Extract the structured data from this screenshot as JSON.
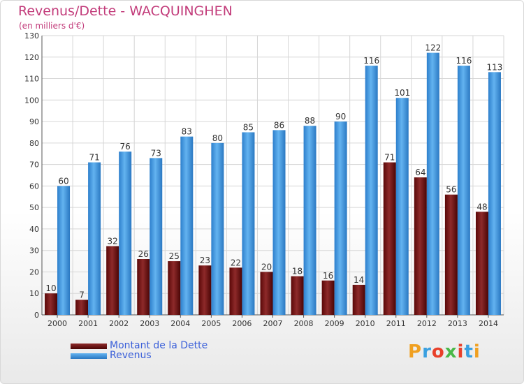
{
  "header": {
    "title": "Revenus/Dette - WACQUINGHEN",
    "subtitle": "(en milliers d'€)"
  },
  "legend": [
    {
      "label": "Montant de la Dette",
      "color": "#6e0f0f"
    },
    {
      "label": "Revenus",
      "color": "#3f98de"
    }
  ],
  "logo": {
    "text": "Proxiti"
  },
  "chart_data": {
    "type": "bar",
    "title": "Revenus/Dette - WACQUINGHEN",
    "subtitle": "(en milliers d'€)",
    "xlabel": "",
    "ylabel": "",
    "ylim": [
      0,
      130
    ],
    "yticks": [
      0,
      10,
      20,
      30,
      40,
      50,
      60,
      70,
      80,
      90,
      100,
      110,
      120,
      130
    ],
    "grid": true,
    "legend_position": "bottom-left",
    "categories": [
      "2000",
      "2001",
      "2002",
      "2003",
      "2004",
      "2005",
      "2006",
      "2007",
      "2008",
      "2009",
      "2010",
      "2011",
      "2012",
      "2013",
      "2014"
    ],
    "series": [
      {
        "name": "Montant de la Dette",
        "color": "#6e0f0f",
        "values": [
          10,
          7,
          32,
          26,
          25,
          23,
          22,
          20,
          18,
          16,
          14,
          71,
          64,
          56,
          48
        ]
      },
      {
        "name": "Revenus",
        "color": "#3f98de",
        "values": [
          60,
          71,
          76,
          73,
          83,
          80,
          85,
          86,
          88,
          90,
          116,
          101,
          122,
          116,
          113
        ]
      }
    ]
  }
}
